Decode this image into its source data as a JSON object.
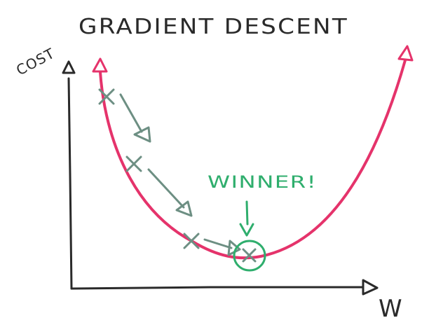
{
  "title": "GRADIENT DESCENT",
  "y_axis_label": "COST",
  "x_axis_label": "W",
  "annotation": "WINNER!",
  "colors": {
    "ink": "#2a2a2a",
    "curve": "#e5336b",
    "steps": "#6d8f83",
    "winner": "#2fae6d"
  },
  "icons": {
    "step_marker": "x-mark",
    "step_arrow": "down-arrow",
    "minimum": "circled-x"
  }
}
